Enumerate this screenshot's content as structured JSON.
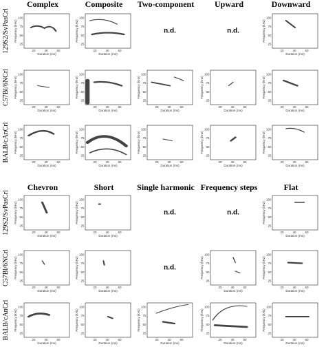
{
  "rows": [
    "129S2/SvPasCrl",
    "C57Bl/6NCrl",
    "BALB/cAnCrl"
  ],
  "axis": {
    "x_label": "Duration (ms)",
    "y_label": "Frequency (kHz)",
    "x_ticks": [
      "20",
      "40",
      "60"
    ],
    "y_ticks": [
      "25",
      "50",
      "75",
      "100"
    ]
  },
  "blocks": [
    {
      "columns": [
        "Complex",
        "Composite",
        "Two-component",
        "Upward",
        "Downward"
      ],
      "cells": [
        [
          null,
          null,
          "n.d.",
          "n.d.",
          null
        ],
        [
          null,
          null,
          null,
          null,
          null
        ],
        [
          null,
          null,
          null,
          null,
          null
        ]
      ]
    },
    {
      "columns": [
        "Chevron",
        "Short",
        "Single harmonic",
        "Frequency steps",
        "Flat"
      ],
      "cells": [
        [
          null,
          null,
          "n.d.",
          "n.d.",
          null
        ],
        [
          null,
          null,
          "n.d.",
          null,
          null
        ],
        [
          null,
          null,
          null,
          null,
          null
        ]
      ]
    }
  ]
}
